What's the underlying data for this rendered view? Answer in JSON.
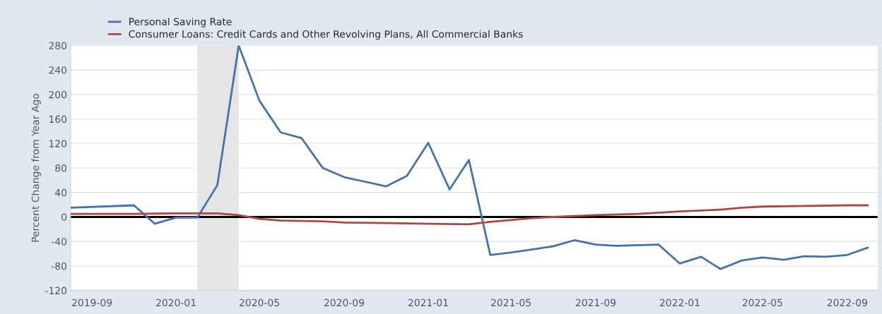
{
  "chart_data": {
    "type": "line",
    "ylabel": "Percent Change from Year Ago",
    "xlim": [
      "2019-08",
      "2022-10-15"
    ],
    "ylim": [
      -120,
      280
    ],
    "xticks": [
      "2019-09",
      "2020-01",
      "2020-05",
      "2020-09",
      "2021-01",
      "2021-05",
      "2021-09",
      "2022-01",
      "2022-05",
      "2022-09"
    ],
    "yticks": [
      -120,
      -80,
      -40,
      0,
      40,
      80,
      120,
      160,
      200,
      240,
      280
    ],
    "grid": "y",
    "legend": "top left",
    "marker": "none",
    "line_style": "solid",
    "series": [
      {
        "name": "Personal Saving Rate",
        "color": "#4572a7",
        "x": [
          "2019-08",
          "2019-11",
          "2019-12",
          "2020-01",
          "2020-02",
          "2020-03",
          "2020-04",
          "2020-05",
          "2020-06",
          "2020-07",
          "2020-08",
          "2020-09",
          "2020-11",
          "2020-12",
          "2021-01",
          "2021-02",
          "2021-03",
          "2021-04",
          "2021-05",
          "2021-07",
          "2021-08",
          "2021-09",
          "2021-10",
          "2021-12",
          "2022-01",
          "2022-02",
          "2022-03",
          "2022-04",
          "2022-05",
          "2022-06",
          "2022-07",
          "2022-08",
          "2022-09",
          "2022-10"
        ],
        "values": [
          15,
          19,
          -11,
          -1,
          -1,
          52,
          280,
          190,
          138,
          129,
          80,
          65,
          50,
          67,
          121,
          45,
          93,
          -62,
          -58,
          -48,
          -38,
          -45,
          -47,
          -45,
          -76,
          -65,
          -85,
          -71,
          -66,
          -70,
          -64,
          -65,
          -62,
          -50
        ]
      },
      {
        "name": "Consumer Loans: Credit Cards and Other Revolving Plans, All Commercial Banks",
        "color": "#aa4643",
        "x": [
          "2019-08",
          "2019-11",
          "2020-01",
          "2020-03",
          "2020-04",
          "2020-05",
          "2020-06",
          "2020-08",
          "2020-09",
          "2020-11",
          "2021-01",
          "2021-03",
          "2021-04",
          "2021-05",
          "2021-06",
          "2021-07",
          "2021-09",
          "2021-11",
          "2022-01",
          "2022-03",
          "2022-04",
          "2022-05",
          "2022-07",
          "2022-09",
          "2022-10"
        ],
        "values": [
          5,
          5,
          6,
          6,
          3,
          -3,
          -6,
          -7,
          -9,
          -10,
          -11,
          -12,
          -8,
          -5,
          -2,
          0,
          3,
          5,
          9,
          12,
          15,
          17,
          18,
          19,
          19
        ]
      }
    ],
    "ref_lines": [
      {
        "axis": "y",
        "value": 0,
        "color": "#000000",
        "line_style": "solid"
      }
    ],
    "bands": [
      {
        "axis": "x",
        "from": "2020-02",
        "to": "2020-04",
        "color": "#e5e5e5"
      }
    ]
  }
}
